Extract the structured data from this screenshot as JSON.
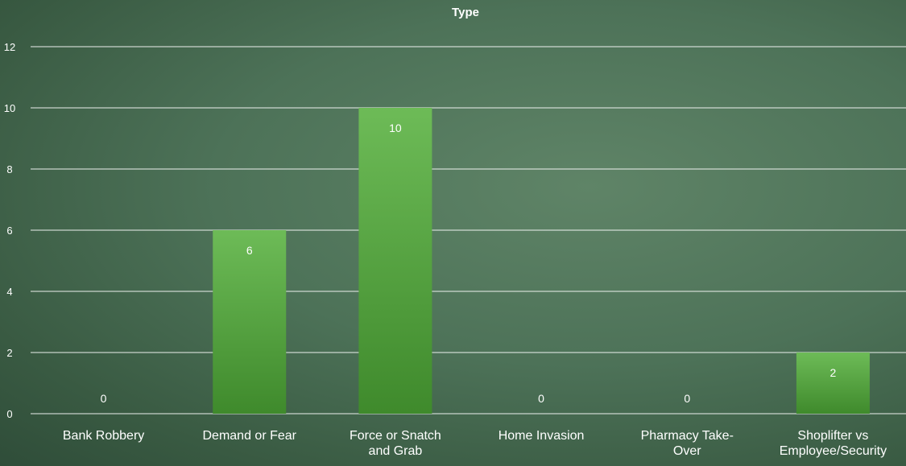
{
  "chart_data": {
    "type": "bar",
    "title": "Type",
    "categories": [
      [
        "Bank Robbery"
      ],
      [
        "Demand or Fear"
      ],
      [
        "Force or Snatch",
        "and Grab"
      ],
      [
        "Home Invasion"
      ],
      [
        "Pharmacy Take-",
        "Over"
      ],
      [
        "Shoplifter vs",
        "Employee/Security"
      ]
    ],
    "values": [
      0,
      6,
      10,
      0,
      0,
      2
    ],
    "ylim": [
      0,
      12
    ],
    "yticks": [
      0,
      2,
      4,
      6,
      8,
      10,
      12
    ],
    "grid": true,
    "legend": "none",
    "colors": {
      "bar_top": "#6dbb57",
      "bar_bottom": "#3f8a2c",
      "grid": "#ffffff"
    }
  }
}
